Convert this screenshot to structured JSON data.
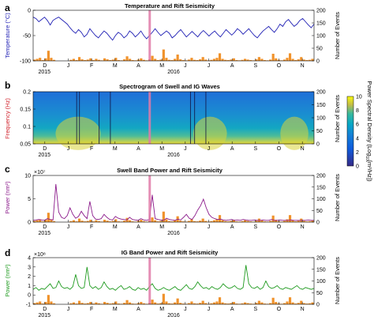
{
  "colors": {
    "temperature": "#1f1fb4",
    "events": "#f0922b",
    "swell_power": "#8b1a8b",
    "ig_power": "#1e9a1e",
    "highlight": "#e07aa8",
    "frequency_label": "#d0202a"
  },
  "months": [
    "D",
    "J",
    "F",
    "M",
    "A",
    "M",
    "J",
    "J",
    "A",
    "S",
    "O",
    "N"
  ],
  "years": [
    "2015",
    "2016"
  ],
  "chart_data": [
    {
      "type": "line",
      "panel_label": "a",
      "title": "Temperature and Rift Seismicity",
      "ylabel": "Temperature (°C)",
      "y2label": "Number of Events",
      "ylim": [
        -100,
        10
      ],
      "yticks": [
        "0",
        "-50",
        "-100"
      ],
      "y2lim": [
        0,
        200
      ],
      "y2ticks": [
        "200",
        "150",
        "100",
        "50",
        "0"
      ],
      "series": [
        {
          "values": [
            -5,
            -8,
            -15,
            -10,
            -5,
            -12,
            -22,
            -12,
            -8,
            -5,
            -10,
            -15,
            -20,
            -28,
            -35,
            -40,
            -32,
            -38,
            -48,
            -42,
            -30,
            -38,
            -45,
            -50,
            -42,
            -35,
            -40,
            -48,
            -55,
            -45,
            -38,
            -42,
            -50,
            -45,
            -35,
            -40,
            -48,
            -42,
            -35,
            -45,
            -52,
            -45,
            -38,
            -30,
            -38,
            -45,
            -40,
            -35,
            -40,
            -50,
            -45,
            -38,
            -32,
            -40,
            -48,
            -42,
            -36,
            -42,
            -48,
            -40,
            -34,
            -40,
            -46,
            -40,
            -35,
            -42,
            -48,
            -40,
            -32,
            -38,
            -44,
            -38,
            -30,
            -35,
            -42,
            -36,
            -30,
            -38,
            -45,
            -50,
            -42,
            -35,
            -30,
            -25,
            -32,
            -38,
            -30,
            -20,
            -25,
            -15,
            -10,
            -18,
            -25,
            -20,
            -12,
            -8,
            -15,
            -22,
            -28,
            -20
          ]
        }
      ],
      "events": [
        5,
        8,
        12,
        3,
        10,
        40,
        12,
        4,
        0,
        0,
        0,
        0,
        0,
        4,
        8,
        3,
        15,
        6,
        3,
        5,
        10,
        3,
        8,
        4,
        2,
        10,
        6,
        3,
        5,
        12,
        3,
        2,
        6,
        18,
        8,
        3,
        2,
        5,
        10,
        4,
        2,
        6,
        20,
        8,
        3,
        5,
        45,
        12,
        4,
        3,
        8,
        25,
        6,
        3,
        2,
        5,
        12,
        4,
        3,
        6,
        15,
        5,
        2,
        4,
        8,
        12,
        30,
        8,
        4,
        3,
        5,
        10,
        3,
        2,
        4,
        8,
        5,
        3,
        2,
        6,
        15,
        8,
        3,
        2,
        5,
        28,
        10,
        4,
        2,
        5,
        12,
        30,
        8,
        3,
        6,
        15,
        5,
        3,
        4,
        8
      ]
    },
    {
      "type": "heatmap",
      "panel_label": "b",
      "title": "Spectrogram of Swell and IG Waves",
      "ylabel": "Frequency (Hz)",
      "y2label": "Number of Events",
      "ylim": [
        0.02,
        0.2
      ],
      "yticks": [
        "0.2",
        "0.15",
        "0.1",
        "0.05"
      ],
      "y2lim": [
        0,
        200
      ],
      "y2ticks": [
        "200",
        "150",
        "100",
        "50",
        "0"
      ],
      "colorbar": {
        "label": "Power Spectral Density (Log",
        "label_sub": "10",
        "label_tail": "[m²/Hz])",
        "range": [
          0,
          10
        ],
        "ticks": [
          "10",
          "8",
          "6",
          "4",
          "2",
          "0"
        ]
      }
    },
    {
      "type": "line",
      "panel_label": "c",
      "title": "Swell Band Power and Rift Seismicity",
      "ylabel": "Power (nm²)",
      "y2label": "Number of Events",
      "exponent": "×10⁷",
      "ylim": [
        -0.3,
        10.5
      ],
      "yticks": [
        "10",
        "5",
        "0"
      ],
      "y2lim": [
        0,
        200
      ],
      "y2ticks": [
        "200",
        "150",
        "100",
        "50",
        "0"
      ],
      "series": [
        {
          "values": [
            0.1,
            0.2,
            0.3,
            0.2,
            0.1,
            0.5,
            0.3,
            0.2,
            8.5,
            2.0,
            0.8,
            0.5,
            1.2,
            3.0,
            1.5,
            0.6,
            1.0,
            2.2,
            1.2,
            0.5,
            4.5,
            1.2,
            0.4,
            0.3,
            0.5,
            1.5,
            0.8,
            0.3,
            0.2,
            1.0,
            0.6,
            0.4,
            0.3,
            0.2,
            0.8,
            0.3,
            0.2,
            0.1,
            0.5,
            0.2,
            0.1,
            0.3,
            6.0,
            0.5,
            0.3,
            0.2,
            0.1,
            0.6,
            0.3,
            0.2,
            0.1,
            0.4,
            0.2,
            0.8,
            1.5,
            0.6,
            0.3,
            1.2,
            2.5,
            3.5,
            5.0,
            3.0,
            1.5,
            0.8,
            0.5,
            0.3,
            0.4,
            0.2,
            0.1,
            0.2,
            0.3,
            0.1,
            0.2,
            0.1,
            0.3,
            0.2,
            0.1,
            0.1,
            0.2,
            0.1,
            0.1,
            0.2,
            0.1,
            0.1,
            0.3,
            0.1,
            0.1,
            0.2,
            0.1,
            0.1,
            0.1,
            0.2,
            0.1,
            0.1,
            0.1,
            0.1,
            0.1,
            0.2,
            0.1,
            0.1
          ]
        }
      ],
      "events": [
        5,
        8,
        12,
        3,
        10,
        40,
        12,
        4,
        0,
        0,
        0,
        0,
        0,
        4,
        8,
        3,
        15,
        6,
        3,
        5,
        10,
        3,
        8,
        4,
        2,
        10,
        6,
        3,
        5,
        12,
        3,
        2,
        6,
        18,
        8,
        3,
        2,
        5,
        10,
        4,
        2,
        6,
        20,
        8,
        3,
        5,
        45,
        12,
        4,
        3,
        8,
        25,
        6,
        3,
        2,
        5,
        12,
        4,
        3,
        6,
        15,
        5,
        2,
        4,
        8,
        12,
        30,
        8,
        4,
        3,
        5,
        10,
        3,
        2,
        4,
        8,
        5,
        3,
        2,
        6,
        15,
        8,
        3,
        2,
        5,
        28,
        10,
        4,
        2,
        5,
        12,
        30,
        8,
        3,
        6,
        15,
        5,
        3,
        4,
        8
      ]
    },
    {
      "type": "line",
      "panel_label": "d",
      "title": "IG Band Power and Rift Seismicity",
      "ylabel": "Power (nm²)",
      "y2label": "Number of Events",
      "exponent": "×10⁸",
      "ylim": [
        -1,
        4
      ],
      "yticks": [
        "4",
        "3",
        "2",
        "1",
        "0",
        "-1"
      ],
      "y2lim": [
        0,
        200
      ],
      "y2ticks": [
        "200",
        "150",
        "100",
        "50",
        "0"
      ],
      "series": [
        {
          "values": [
            0.6,
            0.8,
            0.5,
            0.7,
            0.6,
            0.9,
            1.2,
            0.7,
            0.8,
            1.5,
            0.9,
            0.7,
            0.8,
            0.6,
            0.9,
            2.2,
            1.0,
            0.7,
            0.8,
            3.0,
            1.0,
            0.7,
            0.9,
            0.6,
            0.8,
            1.4,
            0.9,
            0.6,
            0.7,
            0.5,
            0.8,
            1.0,
            0.6,
            0.7,
            0.9,
            0.6,
            0.5,
            0.8,
            0.6,
            0.7,
            0.5,
            0.9,
            1.2,
            0.7,
            0.5,
            0.6,
            0.8,
            0.6,
            0.5,
            0.7,
            0.9,
            0.6,
            0.5,
            0.8,
            1.1,
            0.7,
            0.6,
            0.9,
            1.4,
            1.0,
            0.7,
            0.8,
            0.6,
            0.9,
            0.7,
            0.6,
            0.8,
            1.2,
            0.9,
            0.7,
            0.8,
            1.0,
            0.7,
            0.6,
            0.8,
            3.2,
            1.2,
            0.8,
            0.7,
            0.9,
            0.6,
            0.8,
            1.5,
            0.9,
            0.7,
            0.8,
            1.0,
            0.7,
            0.6,
            0.8,
            0.7,
            0.6,
            0.8,
            1.0,
            0.7,
            0.6,
            0.8,
            0.7,
            0.6,
            0.7
          ]
        }
      ],
      "events": [
        5,
        8,
        12,
        3,
        10,
        40,
        12,
        4,
        0,
        0,
        0,
        0,
        0,
        4,
        8,
        3,
        15,
        6,
        3,
        5,
        10,
        3,
        8,
        4,
        2,
        10,
        6,
        3,
        5,
        12,
        3,
        2,
        6,
        18,
        8,
        3,
        2,
        5,
        10,
        4,
        2,
        6,
        20,
        8,
        3,
        5,
        45,
        12,
        4,
        3,
        8,
        25,
        6,
        3,
        2,
        5,
        12,
        4,
        3,
        6,
        15,
        5,
        2,
        4,
        8,
        12,
        30,
        8,
        4,
        3,
        5,
        10,
        3,
        2,
        4,
        8,
        5,
        3,
        2,
        6,
        15,
        8,
        3,
        2,
        5,
        28,
        10,
        4,
        2,
        5,
        12,
        30,
        8,
        3,
        6,
        15,
        5,
        3,
        4,
        8
      ]
    }
  ]
}
